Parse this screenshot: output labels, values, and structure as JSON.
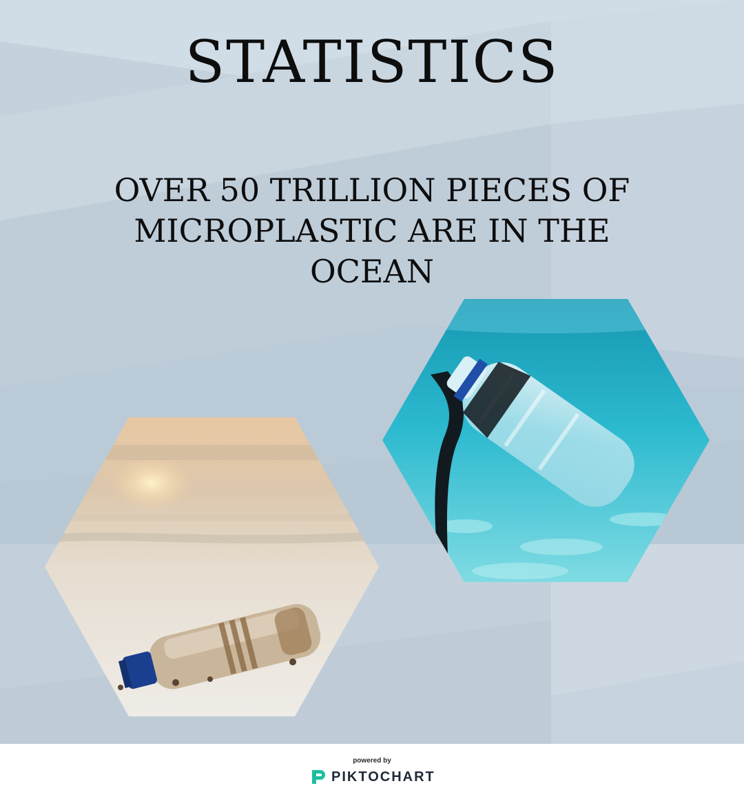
{
  "poster": {
    "title": "STATISTICS",
    "stat_lines": [
      "OVER 50 TRILLION PIECES OF",
      "MICROPLASTIC ARE IN THE",
      "OCEAN"
    ],
    "colors": {
      "background": "#c3d0dc",
      "text": "#0d0d0d"
    }
  },
  "images": {
    "left": "beach-bottle-photo",
    "right": "underwater-bottle-photo"
  },
  "footer": {
    "powered_by": "powered by",
    "brand": "PIKTOCHART",
    "logo_icon": "piktochart-logo-icon",
    "brand_color": "#1dbf9f"
  }
}
